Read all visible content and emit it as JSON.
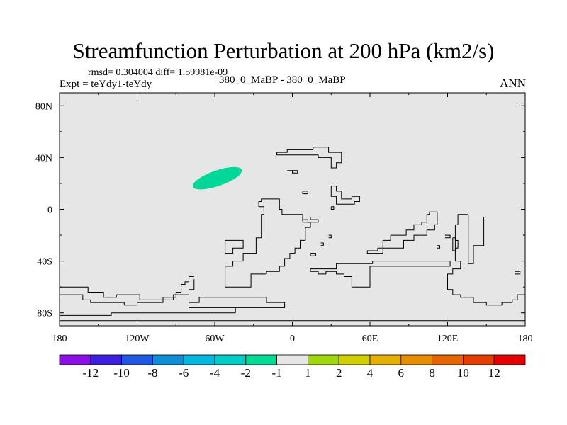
{
  "chart_data": {
    "type": "heatmap",
    "title": "Streamfunction Perturbation at 200 hPa (km2/s)",
    "stats_line": "rmsd= 0.304004 diff= 1.59981e-09",
    "left_label": "Expt = teYdy1-teYdy",
    "center_label": "380_0_MaBP - 380_0_MaBP",
    "right_label": "ANN",
    "xlim": [
      -180,
      180
    ],
    "ylim": [
      -90,
      90
    ],
    "x_ticks": [
      {
        "value": -180,
        "label": "180"
      },
      {
        "value": -120,
        "label": "120W"
      },
      {
        "value": -60,
        "label": "60W"
      },
      {
        "value": 0,
        "label": "0"
      },
      {
        "value": 60,
        "label": "60E"
      },
      {
        "value": 120,
        "label": "120E"
      },
      {
        "value": 180,
        "label": "180"
      }
    ],
    "y_ticks": [
      {
        "value": 80,
        "label": "80N"
      },
      {
        "value": 40,
        "label": "40N"
      },
      {
        "value": 0,
        "label": "0"
      },
      {
        "value": -40,
        "label": "40S"
      },
      {
        "value": -80,
        "label": "80S"
      }
    ],
    "background_color": "#e6e6e6",
    "anomaly_regions": [
      {
        "center_lon": -58,
        "center_lat": 24,
        "lon_radius": 20,
        "lat_radius": 6,
        "tilt_deg": -19,
        "color": "#00d898",
        "level": "-2 to -1"
      }
    ],
    "colorbar": {
      "colors": [
        "#8c0fe8",
        "#3c1fe0",
        "#2058e6",
        "#0e8ed8",
        "#00b8e0",
        "#00ccc8",
        "#00dc96",
        "#e6e6e6",
        "#9ed80c",
        "#d0d000",
        "#e6b000",
        "#e88d00",
        "#e86400",
        "#e63c00",
        "#e60000"
      ],
      "labels": [
        "-12",
        "-10",
        "-8",
        "-6",
        "-4",
        "-2",
        "-1",
        "1",
        "2",
        "4",
        "6",
        "8",
        "10",
        "12"
      ]
    },
    "coastlines": [
      [
        [
          -180,
          -60
        ],
        [
          -158,
          -60
        ],
        [
          -158,
          -64
        ],
        [
          -146,
          -64
        ],
        [
          -146,
          -68
        ],
        [
          -136,
          -68
        ],
        [
          -136,
          -66
        ],
        [
          -118,
          -66
        ],
        [
          -118,
          -70
        ],
        [
          -100,
          -70
        ],
        [
          -100,
          -68
        ],
        [
          -90,
          -68
        ],
        [
          -90,
          -64
        ],
        [
          -86,
          -64
        ],
        [
          -86,
          -58
        ],
        [
          -83,
          -58
        ],
        [
          -83,
          -56
        ],
        [
          -80,
          -56
        ],
        [
          -80,
          -52
        ],
        [
          -76,
          -52
        ]
      ],
      [
        [
          -180,
          -66
        ],
        [
          -162,
          -66
        ],
        [
          -162,
          -70
        ],
        [
          -156,
          -70
        ],
        [
          -156,
          -72
        ],
        [
          -130,
          -72
        ],
        [
          -130,
          -74
        ],
        [
          -120,
          -74
        ],
        [
          -120,
          -72
        ],
        [
          -100,
          -72
        ],
        [
          -100,
          -70
        ],
        [
          -92,
          -70
        ],
        [
          -92,
          -66
        ],
        [
          -80,
          -66
        ],
        [
          -80,
          -62
        ],
        [
          -76,
          -62
        ],
        [
          -76,
          -54
        ]
      ],
      [
        [
          -180,
          -82
        ],
        [
          -140,
          -82
        ],
        [
          -140,
          -80
        ],
        [
          -44,
          -80
        ]
      ],
      [
        [
          -44,
          -80
        ],
        [
          -44,
          -76
        ],
        [
          -80,
          -76
        ],
        [
          -80,
          -72
        ],
        [
          -72,
          -72
        ],
        [
          -72,
          -68
        ],
        [
          -20,
          -68
        ],
        [
          -20,
          -72
        ],
        [
          -6,
          -72
        ],
        [
          -6,
          -76
        ],
        [
          -80,
          -76
        ]
      ],
      [
        [
          -52,
          -26
        ],
        [
          -52,
          -34
        ],
        [
          -46,
          -34
        ],
        [
          -46,
          -30
        ],
        [
          -38,
          -30
        ],
        [
          -38,
          -24
        ],
        [
          -52,
          -24
        ],
        [
          -52,
          -26
        ]
      ],
      [
        [
          -20,
          -50
        ],
        [
          -32,
          -50
        ],
        [
          -32,
          -60
        ],
        [
          -52,
          -60
        ],
        [
          -52,
          -44
        ],
        [
          -46,
          -44
        ],
        [
          -46,
          -40
        ],
        [
          -38,
          -40
        ],
        [
          -38,
          -34
        ],
        [
          -28,
          -34
        ],
        [
          -28,
          -22
        ],
        [
          -24,
          -22
        ],
        [
          -24,
          -4
        ],
        [
          -22,
          -4
        ],
        [
          -22,
          2
        ],
        [
          -26,
          2
        ],
        [
          -26,
          6
        ],
        [
          -24,
          6
        ],
        [
          -24,
          8
        ],
        [
          -10,
          8
        ],
        [
          -10,
          0
        ],
        [
          -8,
          0
        ],
        [
          -8,
          -4
        ],
        [
          8,
          -4
        ],
        [
          8,
          -10
        ],
        [
          14,
          -10
        ],
        [
          14,
          -14
        ],
        [
          10,
          -14
        ],
        [
          10,
          -24
        ],
        [
          6,
          -24
        ],
        [
          6,
          -30
        ],
        [
          2,
          -30
        ],
        [
          2,
          -34
        ],
        [
          -2,
          -34
        ],
        [
          -2,
          -38
        ],
        [
          -6,
          -38
        ],
        [
          -6,
          -44
        ],
        [
          -10,
          -44
        ],
        [
          -10,
          -48
        ],
        [
          -20,
          -48
        ],
        [
          -20,
          -50
        ]
      ],
      [
        [
          0,
          42
        ],
        [
          -12,
          42
        ],
        [
          -12,
          44
        ],
        [
          -4,
          44
        ],
        [
          -4,
          46
        ],
        [
          16,
          46
        ],
        [
          16,
          48
        ],
        [
          28,
          48
        ],
        [
          28,
          44
        ],
        [
          38,
          44
        ],
        [
          38,
          36
        ],
        [
          34,
          36
        ],
        [
          34,
          32
        ],
        [
          30,
          32
        ],
        [
          30,
          40
        ],
        [
          20,
          40
        ],
        [
          20,
          42
        ],
        [
          0,
          42
        ]
      ],
      [
        [
          -4,
          30
        ],
        [
          0,
          30
        ],
        [
          0,
          28
        ],
        [
          4,
          28
        ],
        [
          4,
          30
        ],
        [
          -4,
          30
        ]
      ],
      [
        [
          8,
          14
        ],
        [
          12,
          14
        ],
        [
          12,
          12
        ],
        [
          8,
          12
        ],
        [
          8,
          14
        ]
      ],
      [
        [
          30,
          18
        ],
        [
          34,
          18
        ],
        [
          34,
          14
        ],
        [
          38,
          14
        ],
        [
          38,
          8
        ],
        [
          46,
          8
        ],
        [
          46,
          10
        ],
        [
          52,
          10
        ],
        [
          52,
          6
        ],
        [
          48,
          6
        ],
        [
          48,
          4
        ],
        [
          34,
          4
        ],
        [
          34,
          10
        ],
        [
          30,
          10
        ],
        [
          30,
          18
        ]
      ],
      [
        [
          30,
          2
        ],
        [
          32,
          2
        ],
        [
          32,
          0
        ],
        [
          30,
          0
        ],
        [
          30,
          2
        ]
      ],
      [
        [
          8,
          -6
        ],
        [
          14,
          -6
        ],
        [
          14,
          -8
        ],
        [
          20,
          -8
        ],
        [
          20,
          -10
        ],
        [
          12,
          -10
        ],
        [
          12,
          -8
        ],
        [
          8,
          -8
        ],
        [
          8,
          -6
        ]
      ],
      [
        [
          14,
          -34
        ],
        [
          18,
          -34
        ],
        [
          18,
          -36
        ],
        [
          14,
          -36
        ],
        [
          14,
          -34
        ]
      ],
      [
        [
          22,
          -28
        ],
        [
          24,
          -28
        ],
        [
          24,
          -26
        ],
        [
          22,
          -26
        ]
      ],
      [
        [
          28,
          -20
        ],
        [
          30,
          -20
        ],
        [
          30,
          -22
        ],
        [
          28,
          -22
        ]
      ],
      [
        [
          66,
          -32
        ],
        [
          58,
          -32
        ],
        [
          58,
          -34
        ],
        [
          70,
          -34
        ],
        [
          70,
          -30
        ],
        [
          86,
          -30
        ],
        [
          86,
          -24
        ],
        [
          94,
          -24
        ],
        [
          94,
          -20
        ],
        [
          104,
          -20
        ],
        [
          104,
          -16
        ],
        [
          110,
          -16
        ],
        [
          110,
          -12
        ],
        [
          112,
          -12
        ],
        [
          112,
          -2
        ],
        [
          106,
          -2
        ],
        [
          106,
          -4
        ],
        [
          104,
          -4
        ],
        [
          104,
          -10
        ],
        [
          100,
          -10
        ],
        [
          100,
          -12
        ],
        [
          94,
          -12
        ],
        [
          94,
          -16
        ],
        [
          88,
          -16
        ],
        [
          88,
          -20
        ],
        [
          76,
          -20
        ],
        [
          76,
          -24
        ],
        [
          70,
          -24
        ],
        [
          70,
          -30
        ],
        [
          66,
          -30
        ],
        [
          66,
          -32
        ]
      ],
      [
        [
          136,
          -4
        ],
        [
          136,
          -42
        ],
        [
          140,
          -42
        ],
        [
          140,
          -28
        ],
        [
          148,
          -28
        ],
        [
          148,
          -6
        ],
        [
          136,
          -6
        ]
      ],
      [
        [
          124,
          -22
        ],
        [
          126,
          -22
        ],
        [
          126,
          -32
        ],
        [
          124,
          -32
        ],
        [
          124,
          -22
        ]
      ],
      [
        [
          118,
          -20
        ],
        [
          122,
          -20
        ],
        [
          122,
          -22
        ],
        [
          118,
          -22
        ]
      ],
      [
        [
          112,
          -28
        ],
        [
          114,
          -28
        ],
        [
          114,
          -30
        ],
        [
          112,
          -30
        ]
      ],
      [
        [
          136,
          -4
        ],
        [
          128,
          -4
        ],
        [
          128,
          -12
        ],
        [
          126,
          -12
        ],
        [
          126,
          -24
        ],
        [
          128,
          -24
        ],
        [
          128,
          -30
        ],
        [
          126,
          -30
        ],
        [
          126,
          -40
        ],
        [
          130,
          -40
        ],
        [
          130,
          -46
        ],
        [
          124,
          -46
        ],
        [
          124,
          -50
        ],
        [
          120,
          -50
        ],
        [
          120,
          -62
        ],
        [
          124,
          -62
        ],
        [
          124,
          -66
        ],
        [
          130,
          -66
        ],
        [
          130,
          -68
        ],
        [
          140,
          -68
        ],
        [
          140,
          -72
        ],
        [
          150,
          -72
        ],
        [
          150,
          -74
        ],
        [
          162,
          -74
        ],
        [
          162,
          -72
        ],
        [
          170,
          -72
        ],
        [
          170,
          -70
        ],
        [
          174,
          -70
        ],
        [
          174,
          -66
        ],
        [
          180,
          -66
        ]
      ],
      [
        [
          172,
          -48
        ],
        [
          176,
          -48
        ],
        [
          176,
          -50
        ],
        [
          172,
          -50
        ]
      ],
      [
        [
          56,
          -42
        ],
        [
          62,
          -42
        ],
        [
          62,
          -40
        ],
        [
          122,
          -40
        ],
        [
          122,
          -44
        ],
        [
          60,
          -44
        ],
        [
          60,
          -60
        ],
        [
          46,
          -60
        ],
        [
          46,
          -52
        ],
        [
          40,
          -52
        ],
        [
          40,
          -50
        ],
        [
          34,
          -50
        ],
        [
          34,
          -48
        ],
        [
          26,
          -48
        ],
        [
          26,
          -50
        ],
        [
          20,
          -50
        ],
        [
          20,
          -48
        ],
        [
          14,
          -48
        ],
        [
          14,
          -46
        ],
        [
          34,
          -46
        ],
        [
          34,
          -42
        ],
        [
          56,
          -42
        ]
      ],
      [
        [
          -180,
          -86
        ],
        [
          -120,
          -86
        ],
        [
          -80,
          -86
        ],
        [
          -44,
          -86
        ],
        [
          0,
          -86
        ],
        [
          60,
          -86
        ],
        [
          180,
          -86
        ]
      ]
    ]
  }
}
